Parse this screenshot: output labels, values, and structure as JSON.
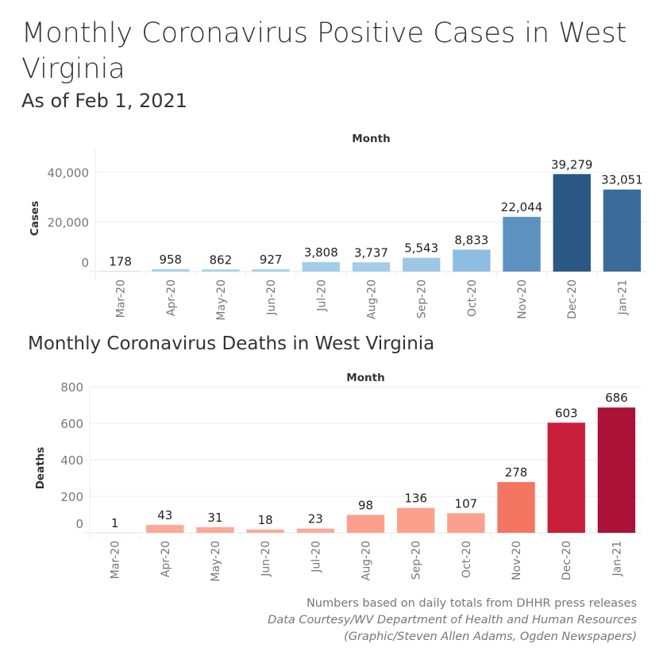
{
  "title": "Monthly Coronavirus Positive Cases in West Virginia",
  "subtitle": "As of Feb 1, 2021",
  "footer": {
    "line1": "Numbers based on daily totals from DHHR press releases",
    "line2": "Data Courtesy/WV Department of Health and Human Resources",
    "line3": "(Graphic/Steven Allen Adams, Ogden Newspapers)"
  },
  "chart_data": [
    {
      "type": "bar",
      "title": "",
      "xlabel": "Month",
      "ylabel": "Cases",
      "categories": [
        "Mar-20",
        "Apr-20",
        "May-20",
        "Jun-20",
        "Jul-20",
        "Aug-20",
        "Sep-20",
        "Oct-20",
        "Nov-20",
        "Dec-20",
        "Jan-21"
      ],
      "values": [
        178,
        958,
        862,
        927,
        3808,
        3737,
        5543,
        8833,
        22044,
        39279,
        33051
      ],
      "data_labels": [
        "178",
        "958",
        "862",
        "927",
        "3,808",
        "3,737",
        "5,543",
        "8,833",
        "22,044",
        "39,279",
        "33,051"
      ],
      "yticks": [
        0,
        20000,
        40000
      ],
      "ytick_labels": [
        "0",
        "20,000",
        "40,000"
      ],
      "ylim": [
        0,
        48000
      ],
      "grid": true,
      "colors": [
        "#a8d1ea",
        "#a8d1ea",
        "#a8d1ea",
        "#a8d1ea",
        "#a3cde8",
        "#a3cde8",
        "#9dc8e5",
        "#8dbde0",
        "#5d91c0",
        "#2a5783",
        "#3b6b99"
      ]
    },
    {
      "type": "bar",
      "title": "Monthly Coronavirus Deaths in West Virginia",
      "xlabel": "Month",
      "ylabel": "Deaths",
      "categories": [
        "Mar-20",
        "Apr-20",
        "May-20",
        "Jun-20",
        "Jul-20",
        "Aug-20",
        "Sep-20",
        "Oct-20",
        "Nov-20",
        "Dec-20",
        "Jan-21"
      ],
      "values": [
        1,
        43,
        31,
        18,
        23,
        98,
        136,
        107,
        278,
        603,
        686
      ],
      "data_labels": [
        "1",
        "43",
        "31",
        "18",
        "23",
        "98",
        "136",
        "107",
        "278",
        "603",
        "686"
      ],
      "yticks": [
        0,
        200,
        400,
        600,
        800
      ],
      "ytick_labels": [
        "0",
        "200",
        "400",
        "600",
        "800"
      ],
      "ylim": [
        0,
        800
      ],
      "grid": true,
      "colors": [
        "#fbb0a0",
        "#fbaa98",
        "#fbaa98",
        "#fbaa98",
        "#fbaa98",
        "#fba08c",
        "#fba08c",
        "#fba08c",
        "#f47560",
        "#c81e3a",
        "#ab1238"
      ]
    }
  ]
}
